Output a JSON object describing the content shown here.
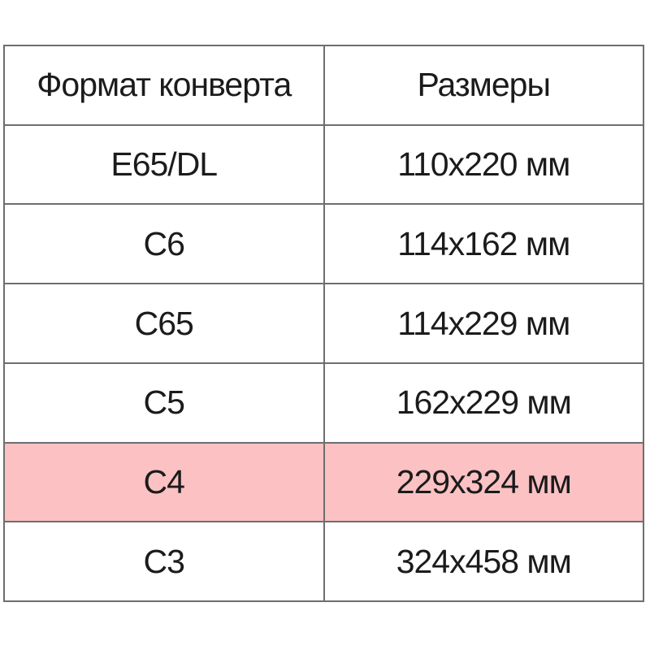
{
  "chart_data": {
    "type": "table",
    "columns": [
      "Формат конверта",
      "Размеры"
    ],
    "rows": [
      [
        "E65/DL",
        "110x220 мм"
      ],
      [
        "C6",
        "114x162 мм"
      ],
      [
        "C65",
        "114x229 мм"
      ],
      [
        "C5",
        "162x229 мм"
      ],
      [
        "C4",
        "229x324 мм"
      ],
      [
        "C3",
        "324x458 мм"
      ]
    ],
    "highlighted_row_index": 4,
    "highlight_color": "#fbc1c3",
    "border_color": "#6e6e6e",
    "text_color": "#1b1b1b",
    "background_color": "#ffffff"
  }
}
